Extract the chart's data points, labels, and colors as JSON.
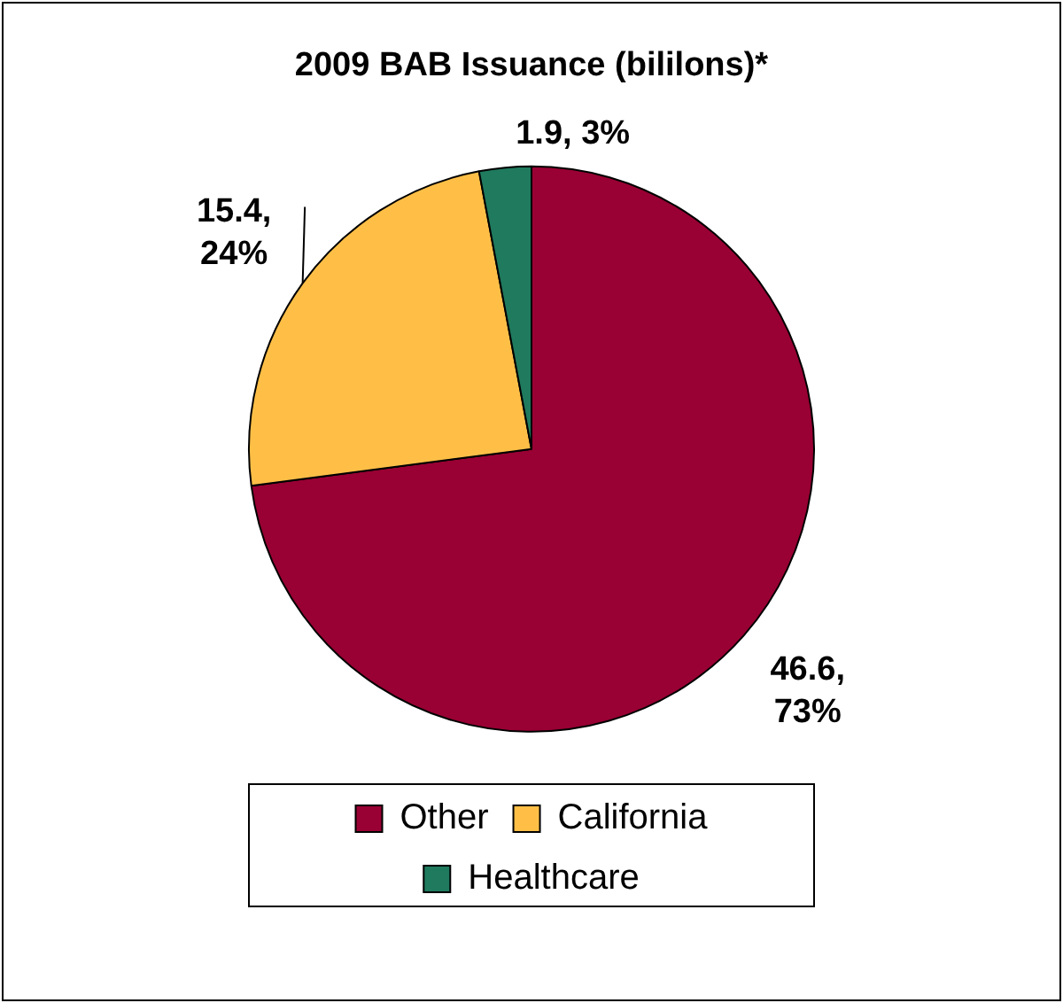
{
  "chart_data": {
    "type": "pie",
    "title": "2009 BAB Issuance (bililons)*",
    "categories": [
      "Other",
      "California",
      "Healthcare"
    ],
    "values": [
      46.6,
      15.4,
      1.9
    ],
    "colors": [
      "#990033",
      "#ffbf47",
      "#1f7a5e"
    ],
    "value_labels": [
      "46.6, 73%",
      "15.4, 24%",
      "1.9, 3%"
    ],
    "legend": "bottom"
  }
}
